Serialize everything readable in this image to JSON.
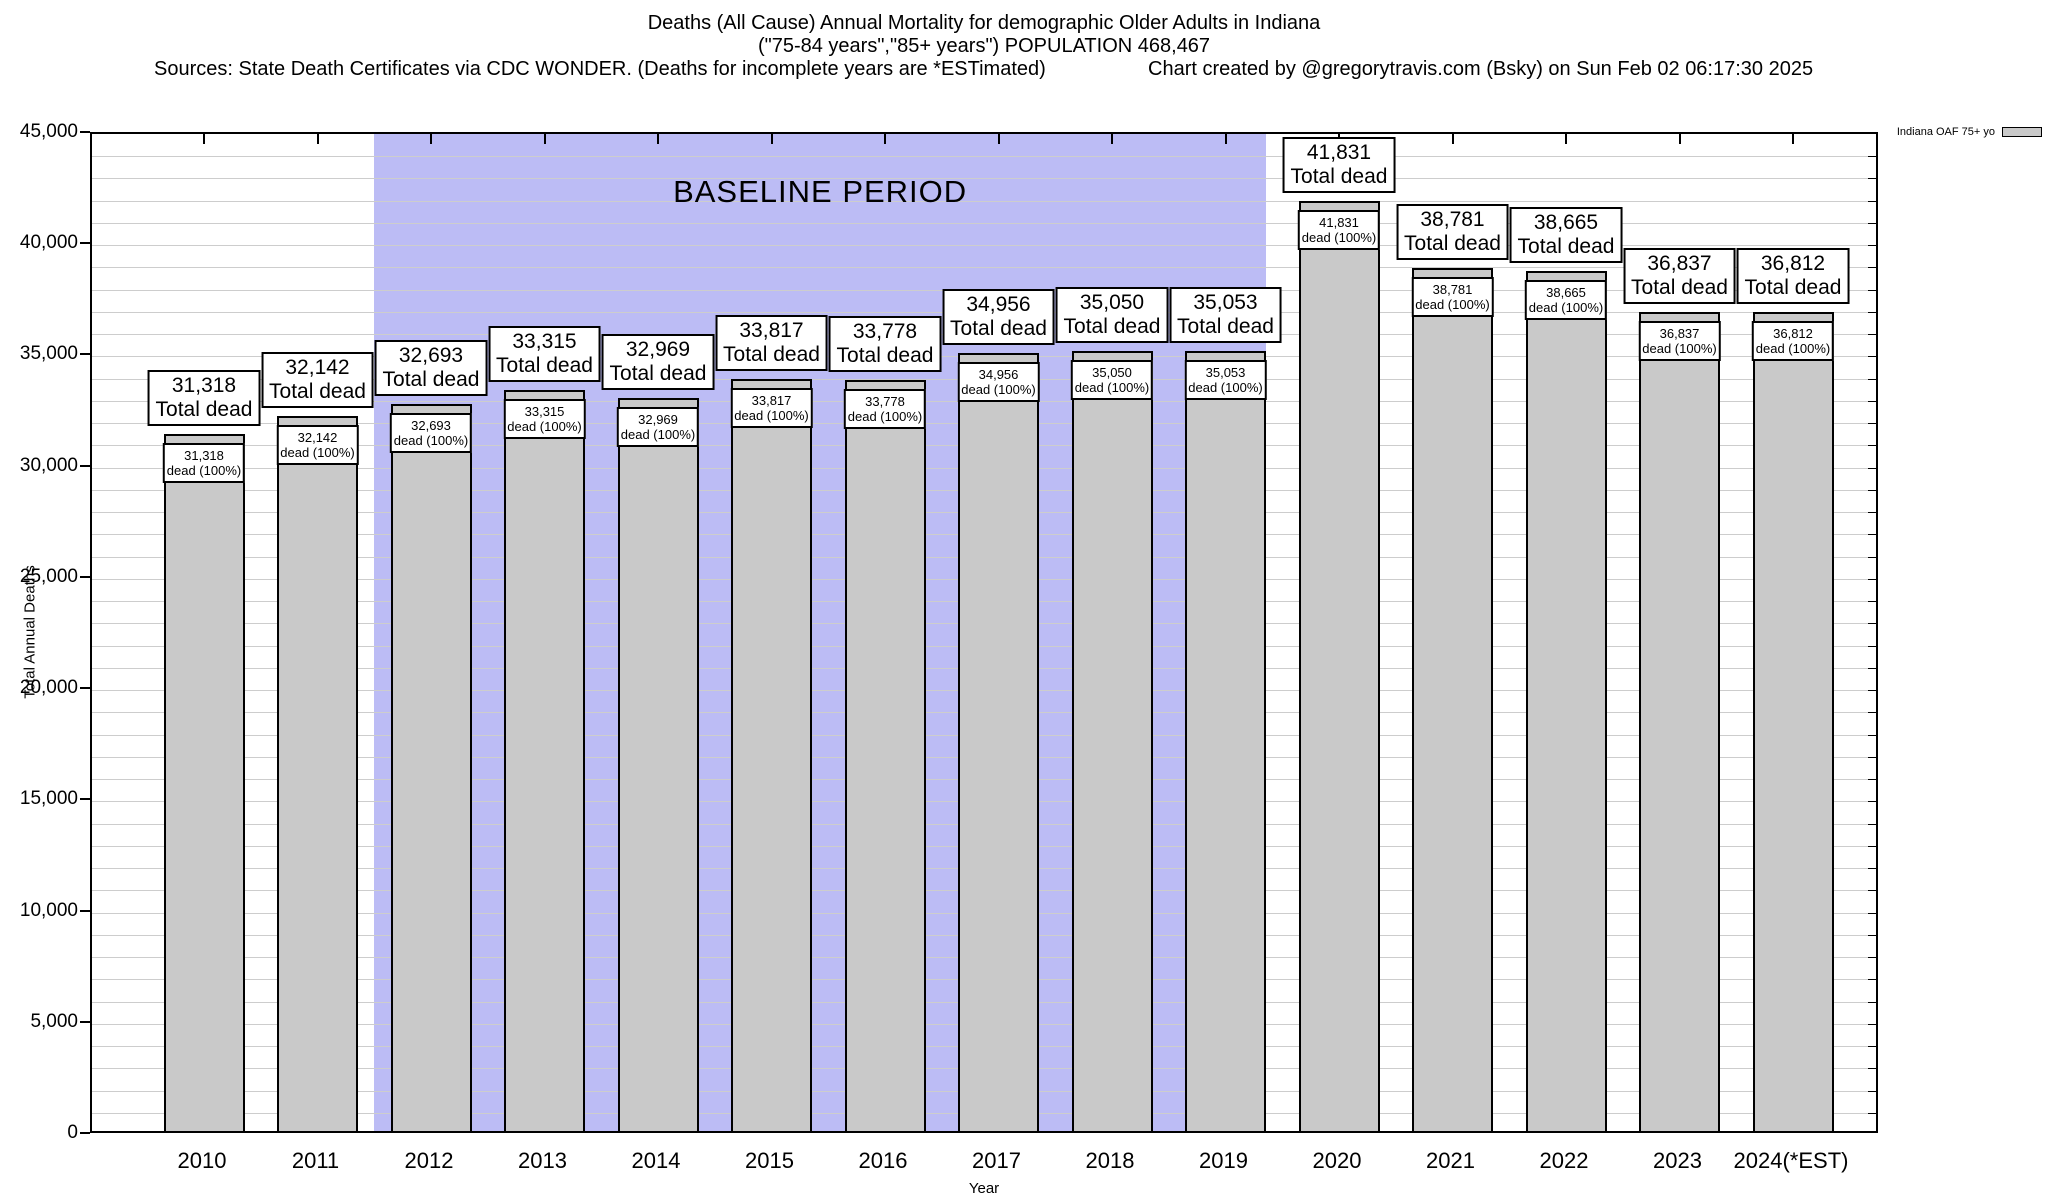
{
  "header": {
    "title_line1": "Deaths (All Cause) Annual Mortality for demographic Older Adults in Indiana",
    "title_line2": "(\"75-84 years\",\"85+ years\") POPULATION 468,467",
    "sources": "Sources: State Death Certificates via CDC WONDER. (Deaths for incomplete years are *ESTimated)",
    "credit": "Chart created by @gregorytravis.com (Bsky) on Sun Feb 02 06:17:30 2025"
  },
  "chart_data": {
    "type": "bar",
    "title": "Deaths (All Cause) Annual Mortality for demographic Older Adults in Indiana",
    "subtitle": "(\"75-84 years\",\"85+ years\") POPULATION 468,467",
    "xlabel": "Year",
    "ylabel": "Total Annual Deaths",
    "ylim": [
      0,
      45000
    ],
    "ytick_step": 5000,
    "minor_grid_step": 1000,
    "grid": true,
    "legend_position": "top-right-outside",
    "legend_label": "Indiana OAF 75+ yo",
    "bar_color": "#c9c9c9",
    "baseline_region": {
      "label": "BASELINE PERIOD",
      "from_year": "2012",
      "to_year": "2019",
      "color": "#bcbcf5"
    },
    "categories": [
      "2010",
      "2011",
      "2012",
      "2013",
      "2014",
      "2015",
      "2016",
      "2017",
      "2018",
      "2019",
      "2020",
      "2021",
      "2022",
      "2023",
      "2024(*EST)"
    ],
    "series": [
      {
        "name": "Indiana OAF 75+ yo",
        "values": [
          31318,
          32142,
          32693,
          33315,
          32969,
          33817,
          33778,
          34956,
          35050,
          35053,
          41831,
          38781,
          38665,
          36837,
          36812
        ]
      }
    ],
    "bar_top_label_suffix": "Total dead",
    "bar_inner_label_suffix": "dead (100%)"
  }
}
